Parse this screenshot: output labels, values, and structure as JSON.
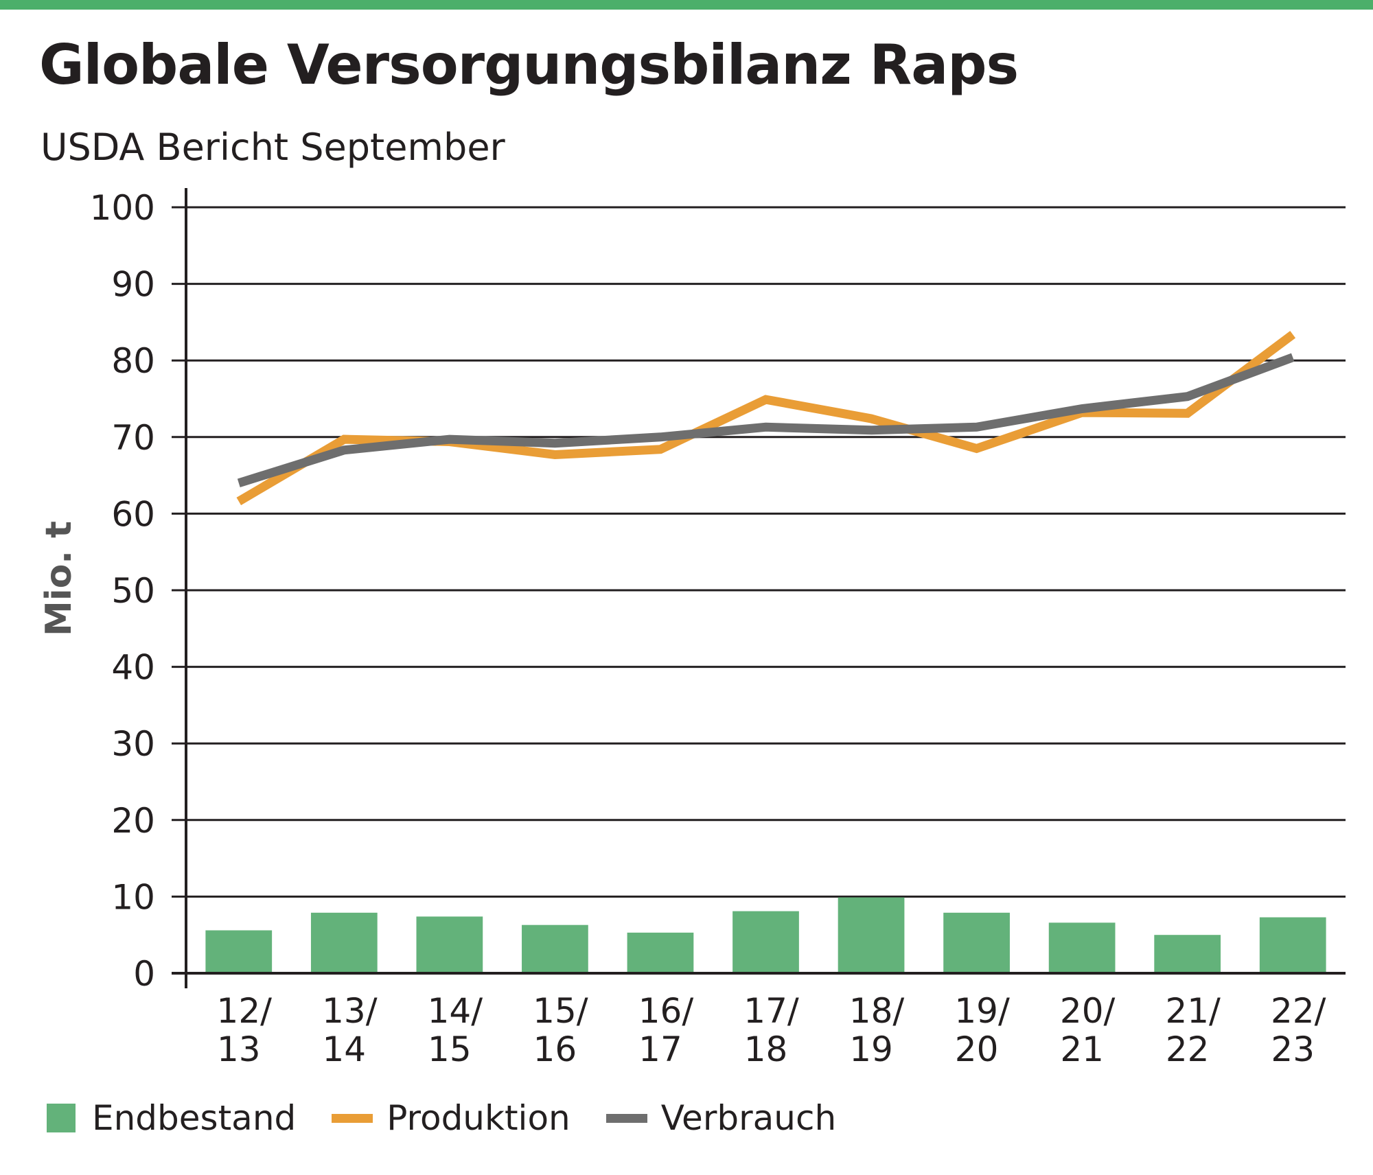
{
  "header": {
    "title": "Globale Versorgungsbilanz Raps",
    "subtitle": "USDA Bericht September"
  },
  "chart_data": {
    "type": "bar",
    "title": "Globale Versorgungsbilanz Raps",
    "subtitle": "USDA Bericht September",
    "xlabel": "",
    "ylabel": "Mio. t",
    "ylim": [
      0,
      100
    ],
    "yticks": [
      0,
      10,
      20,
      30,
      40,
      50,
      60,
      70,
      80,
      90,
      100
    ],
    "grid": true,
    "legend_position": "bottom",
    "categories": [
      [
        "12/",
        "13"
      ],
      [
        "13/",
        "14"
      ],
      [
        "14/",
        "15"
      ],
      [
        "15/",
        "16"
      ],
      [
        "16/",
        "17"
      ],
      [
        "17/",
        "18"
      ],
      [
        "18/",
        "19"
      ],
      [
        "19/",
        "20"
      ],
      [
        "20/",
        "21"
      ],
      [
        "21/",
        "22"
      ],
      [
        "22/",
        "23"
      ]
    ],
    "series": [
      {
        "name": "Endbestand",
        "type": "bar",
        "color": "#63b27a",
        "values": [
          5.6,
          7.9,
          7.4,
          6.3,
          5.3,
          8.1,
          9.9,
          7.9,
          6.6,
          5.0,
          7.3
        ]
      },
      {
        "name": "Produktion",
        "type": "line",
        "color": "#e99d36",
        "values": [
          61.6,
          69.7,
          69.4,
          67.7,
          68.4,
          74.9,
          72.4,
          68.5,
          73.2,
          73.1,
          83.4
        ]
      },
      {
        "name": "Verbrauch",
        "type": "line",
        "color": "#6e6e6e",
        "values": [
          64.0,
          68.3,
          69.7,
          69.2,
          70.0,
          71.3,
          70.9,
          71.3,
          73.7,
          75.3,
          80.4
        ]
      }
    ]
  }
}
